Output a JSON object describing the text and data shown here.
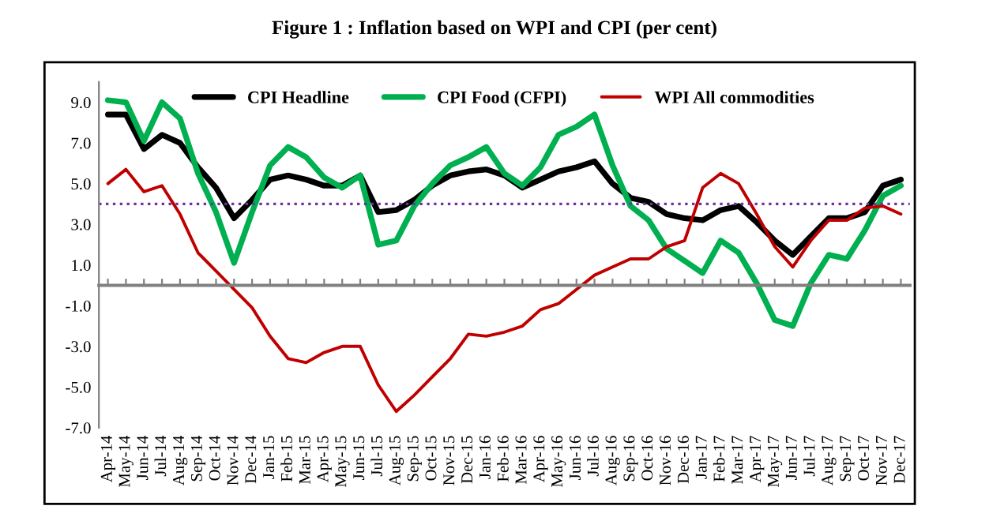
{
  "chart_data": {
    "type": "line",
    "title": "Figure 1 : Inflation based on WPI and CPI (per cent)",
    "categories": [
      "Apr-14",
      "May-14",
      "Jun-14",
      "Jul-14",
      "Aug-14",
      "Sep-14",
      "Oct-14",
      "Nov-14",
      "Dec-14",
      "Jan-15",
      "Feb-15",
      "Mar-15",
      "Apr-15",
      "May-15",
      "Jun-15",
      "Jul-15",
      "Aug-15",
      "Sep-15",
      "Oct-15",
      "Nov-15",
      "Dec-15",
      "Jan-16",
      "Feb-16",
      "Mar-16",
      "Apr-16",
      "May-16",
      "Jun-16",
      "Jul-16",
      "Aug-16",
      "Sep-16",
      "Oct-16",
      "Nov-16",
      "Dec-16",
      "Jan-17",
      "Feb-17",
      "Mar-17",
      "Apr-17",
      "May-17",
      "Jun-17",
      "Jul-17",
      "Aug-17",
      "Sep-17",
      "Oct-17",
      "Nov-17",
      "Dec-17"
    ],
    "series": [
      {
        "name": "CPI Headline",
        "color": "#000000",
        "values": [
          8.4,
          8.4,
          6.7,
          7.4,
          7.0,
          5.8,
          4.8,
          3.3,
          4.2,
          5.2,
          5.4,
          5.2,
          4.9,
          4.9,
          5.4,
          3.6,
          3.7,
          4.2,
          4.9,
          5.4,
          5.6,
          5.7,
          5.4,
          4.8,
          5.2,
          5.6,
          5.8,
          6.1,
          5.0,
          4.3,
          4.1,
          3.5,
          3.3,
          3.2,
          3.7,
          3.9,
          3.1,
          2.2,
          1.5,
          2.4,
          3.3,
          3.3,
          3.6,
          4.9,
          5.2
        ]
      },
      {
        "name": "CPI Food (CFPI)",
        "color": "#00b050",
        "values": [
          9.1,
          9.0,
          7.1,
          9.0,
          8.2,
          5.5,
          3.6,
          1.1,
          3.6,
          5.9,
          6.8,
          6.3,
          5.3,
          4.8,
          5.4,
          2.0,
          2.2,
          3.9,
          5.0,
          5.9,
          6.3,
          6.8,
          5.5,
          4.9,
          5.8,
          7.4,
          7.8,
          8.4,
          5.9,
          3.9,
          3.2,
          1.8,
          1.2,
          0.6,
          2.2,
          1.6,
          0.1,
          -1.7,
          -2.0,
          0.1,
          1.5,
          1.3,
          2.7,
          4.4,
          4.9
        ]
      },
      {
        "name": "WPI All commodities",
        "color": "#c00000",
        "values": [
          5.0,
          5.7,
          4.6,
          4.9,
          3.5,
          1.6,
          0.7,
          -0.2,
          -1.1,
          -2.5,
          -3.6,
          -3.8,
          -3.3,
          -3.0,
          -3.0,
          -4.9,
          -6.2,
          -5.4,
          -4.5,
          -3.6,
          -2.4,
          -2.5,
          -2.3,
          -2.0,
          -1.2,
          -0.9,
          -0.2,
          0.5,
          0.9,
          1.3,
          1.3,
          1.9,
          2.2,
          4.8,
          5.5,
          5.0,
          3.5,
          1.9,
          0.9,
          2.2,
          3.2,
          3.2,
          3.8,
          3.9,
          3.5
        ]
      }
    ],
    "ylim": [
      -7,
      10
    ],
    "yticks": [
      {
        "value": 9,
        "label": "9.0"
      },
      {
        "value": 7,
        "label": "7.0"
      },
      {
        "value": 5,
        "label": "5.0"
      },
      {
        "value": 3,
        "label": "3.0"
      },
      {
        "value": 1,
        "label": "1.0"
      },
      {
        "value": -1,
        "label": "-1.0"
      },
      {
        "value": -3,
        "label": "-3.0"
      },
      {
        "value": -5,
        "label": "-5.0"
      },
      {
        "value": -7,
        "label": "-7.0"
      }
    ],
    "ref_lines": [
      {
        "axis": "y",
        "value": 4,
        "color": "#7030a0",
        "line_style": "dotted"
      }
    ],
    "legend": "top",
    "grid": false,
    "marker": "none",
    "line_style": "solid"
  }
}
